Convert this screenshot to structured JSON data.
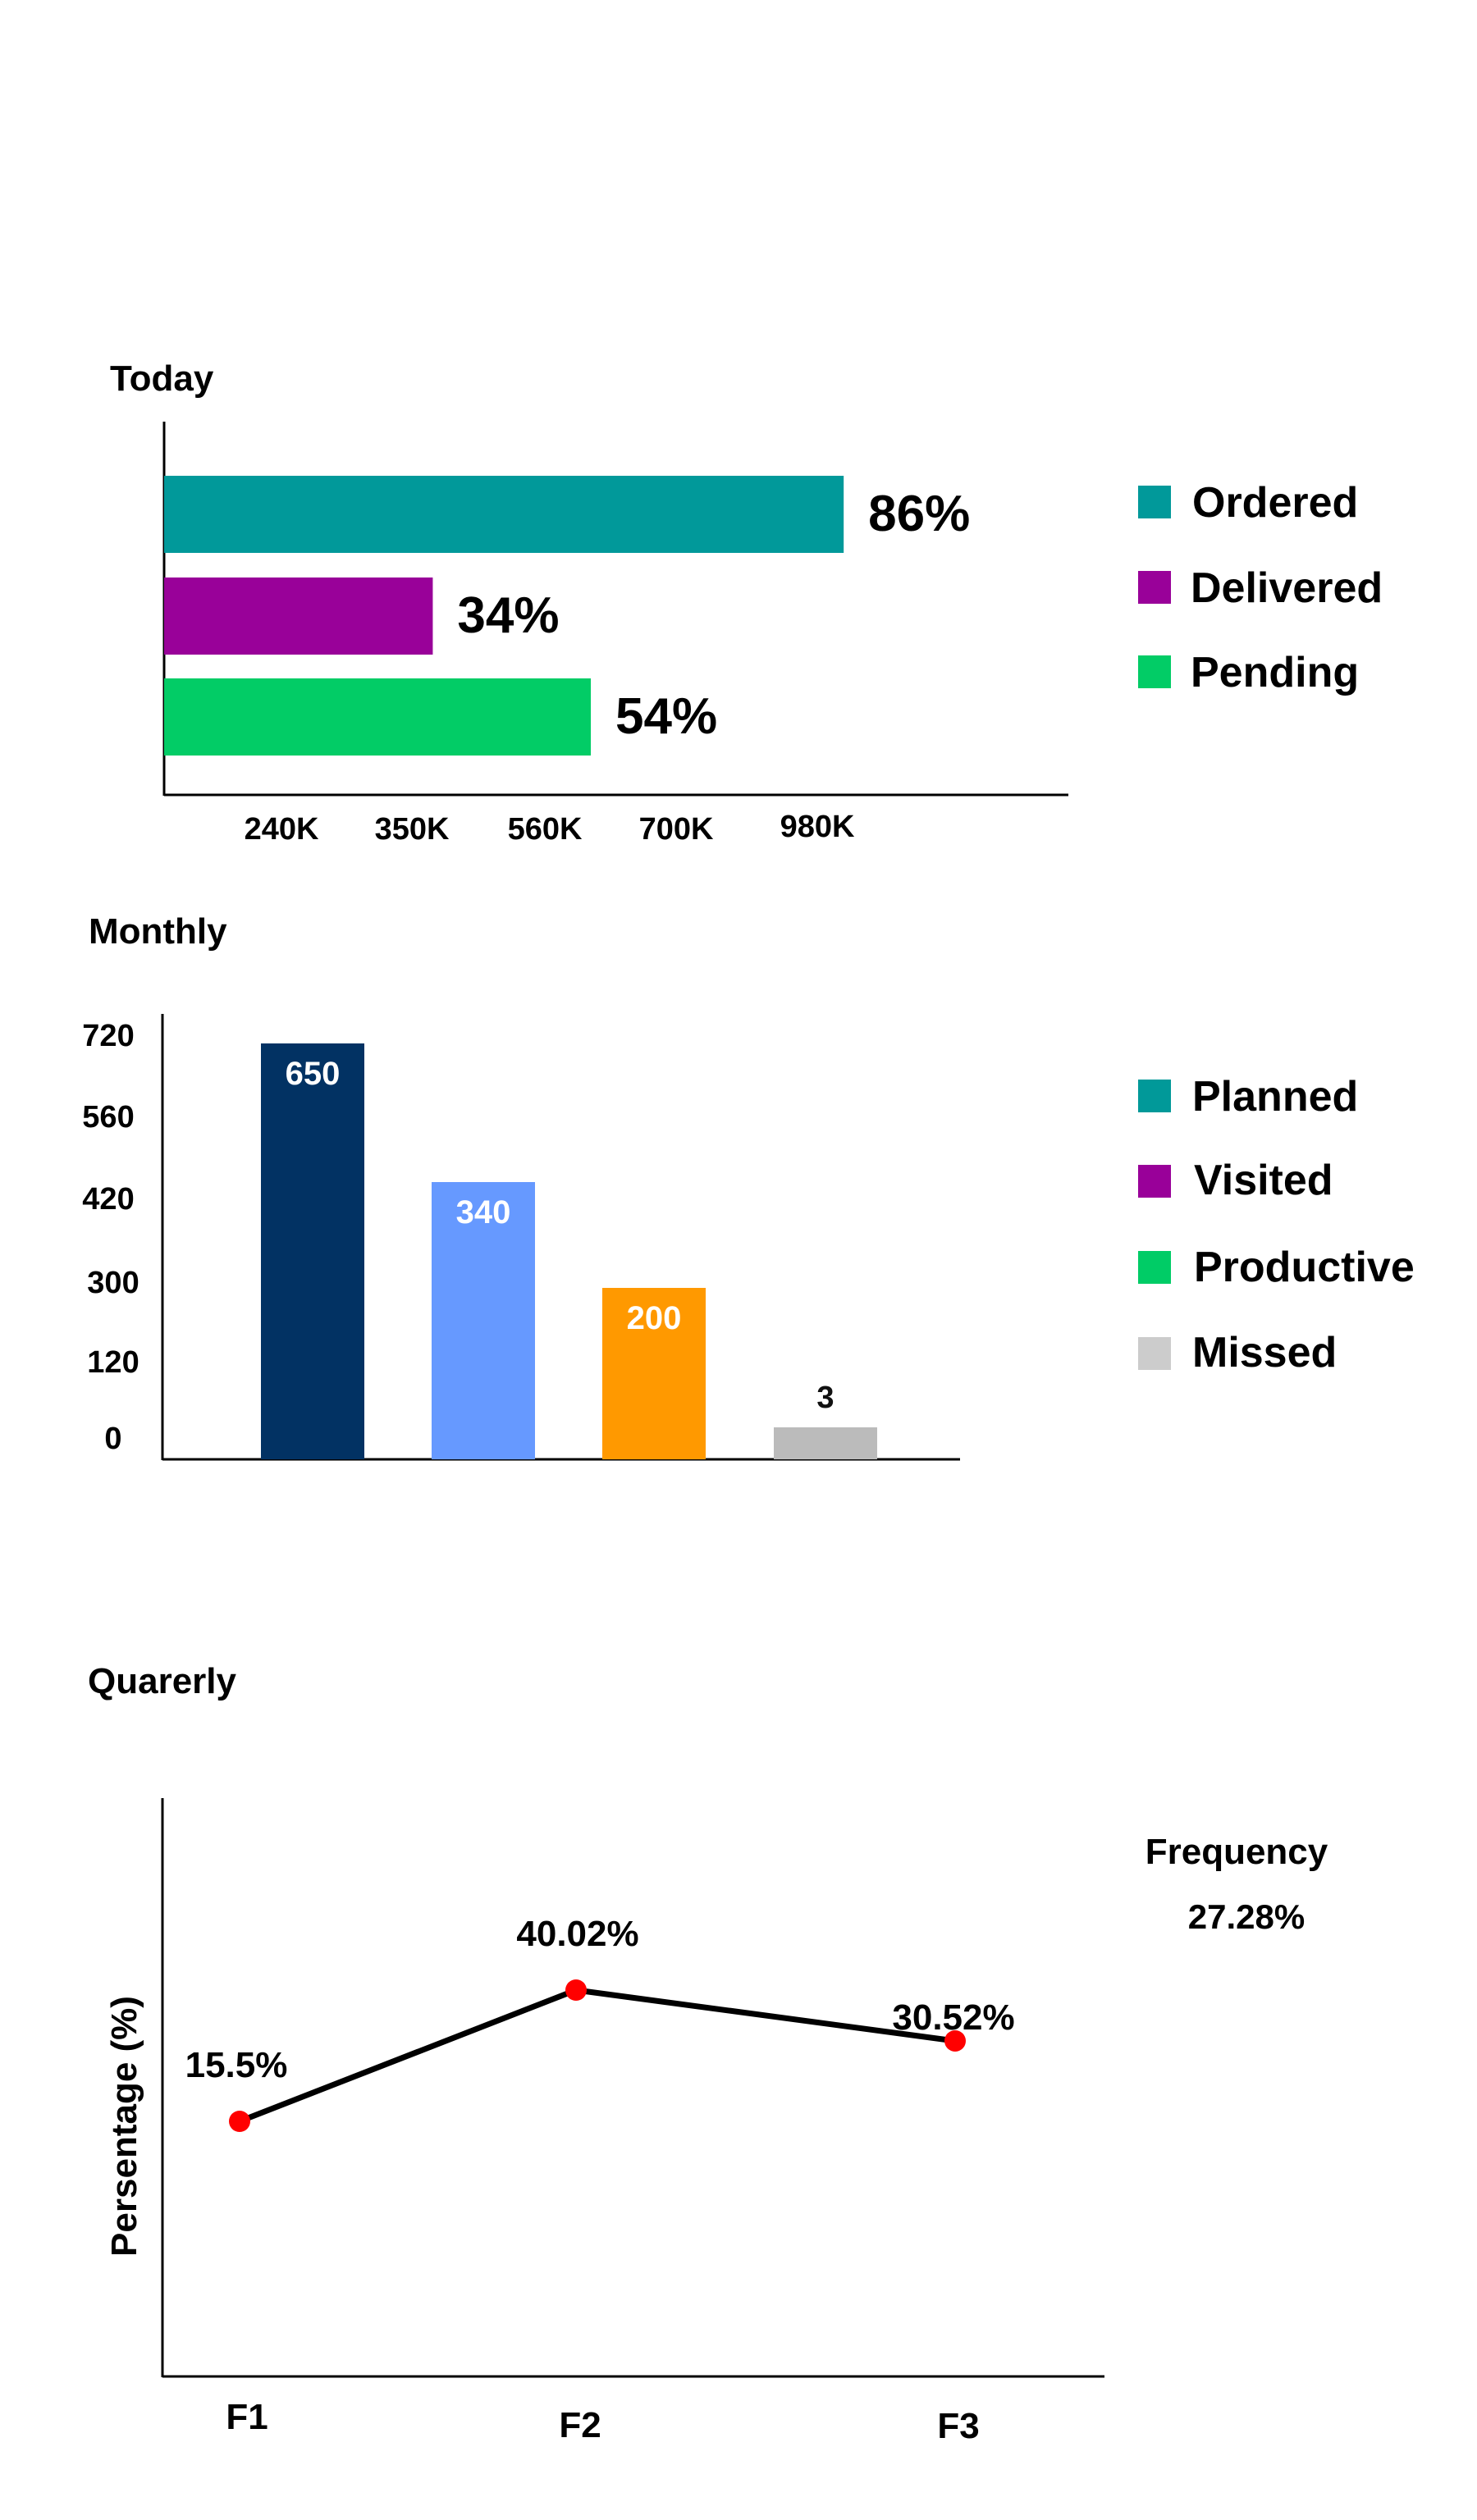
{
  "chart_data": [
    {
      "type": "bar",
      "orientation": "horizontal",
      "title": "Today",
      "categories": [
        "Ordered",
        "Delivered",
        "Pending"
      ],
      "values": [
        86,
        34,
        54
      ],
      "value_labels": [
        "86%",
        "34%",
        "54%"
      ],
      "x_tick_labels": [
        "240K",
        "350K",
        "560K",
        "700K",
        "980K"
      ],
      "xlim": [
        0,
        100
      ],
      "legend": [
        {
          "label": "Ordered",
          "color": "#01999a"
        },
        {
          "label": "Delivered",
          "color": "#990199"
        },
        {
          "label": "Pending",
          "color": "#02cc66"
        }
      ],
      "legend_position": "right",
      "grid": false
    },
    {
      "type": "bar",
      "orientation": "vertical",
      "title": "Monthly",
      "categories": [
        "Planned",
        "Visited",
        "Productive",
        "Missed"
      ],
      "values": [
        650,
        340,
        200,
        3
      ],
      "value_labels": [
        "650",
        "340",
        "200",
        "3"
      ],
      "bar_colors": [
        "#023263",
        "#6699ff",
        "#ff9900",
        "#bbbbbb"
      ],
      "y_tick_labels": [
        "0",
        "120",
        "300",
        "420",
        "560",
        "720"
      ],
      "legend": [
        {
          "label": "Planned",
          "color": "#019999"
        },
        {
          "label": "Visited",
          "color": "#990099"
        },
        {
          "label": "Productive",
          "color": "#00cc66"
        },
        {
          "label": "Missed",
          "color": "#cccccc"
        }
      ],
      "legend_position": "right",
      "grid": false
    },
    {
      "type": "line",
      "title": "Quarerly",
      "ylabel": "Persentage (%)",
      "categories": [
        "F1",
        "F2",
        "F3"
      ],
      "values": [
        15.5,
        40.02,
        30.52
      ],
      "value_labels": [
        "15.5%",
        "40.02%",
        "30.52%"
      ],
      "line_color": "#000000",
      "marker_color": "#ff0000",
      "summary_label": "Frequency",
      "summary_value": "27.28%",
      "grid": false
    }
  ]
}
